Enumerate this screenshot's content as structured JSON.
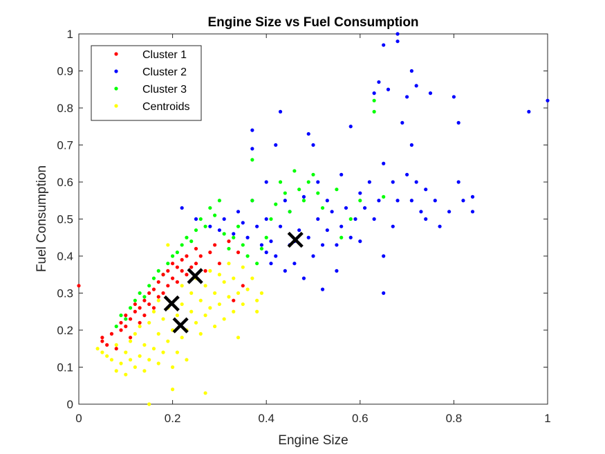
{
  "chart_data": {
    "type": "scatter",
    "title": "Engine Size vs Fuel Consumption",
    "xlabel": "Engine Size",
    "ylabel": "Fuel Consumption",
    "xlim": [
      0,
      1
    ],
    "ylim": [
      0,
      1
    ],
    "x_ticks": [
      "0",
      "0.2",
      "0.4",
      "0.6",
      "0.8",
      "1"
    ],
    "y_ticks": [
      "0",
      "0.1",
      "0.2",
      "0.3",
      "0.4",
      "0.5",
      "0.6",
      "0.7",
      "0.8",
      "0.9",
      "1"
    ],
    "grid": false,
    "legend_position": "top-left",
    "legend": [
      {
        "name": "Cluster 1",
        "color": "#ff0000"
      },
      {
        "name": "Cluster 2",
        "color": "#0000ff"
      },
      {
        "name": "Cluster 3",
        "color": "#00ff00"
      },
      {
        "name": "Centroids",
        "color": "#ffff00"
      }
    ],
    "series": [
      {
        "name": "Cluster 1",
        "color": "#ff0000",
        "points": [
          [
            0.0,
            0.32
          ],
          [
            0.05,
            0.18
          ],
          [
            0.05,
            0.17
          ],
          [
            0.06,
            0.16
          ],
          [
            0.07,
            0.19
          ],
          [
            0.08,
            0.15
          ],
          [
            0.09,
            0.2
          ],
          [
            0.09,
            0.22
          ],
          [
            0.1,
            0.21
          ],
          [
            0.1,
            0.24
          ],
          [
            0.11,
            0.18
          ],
          [
            0.11,
            0.23
          ],
          [
            0.12,
            0.25
          ],
          [
            0.12,
            0.27
          ],
          [
            0.13,
            0.22
          ],
          [
            0.13,
            0.26
          ],
          [
            0.14,
            0.28
          ],
          [
            0.14,
            0.24
          ],
          [
            0.15,
            0.3
          ],
          [
            0.15,
            0.27
          ],
          [
            0.16,
            0.31
          ],
          [
            0.16,
            0.26
          ],
          [
            0.17,
            0.29
          ],
          [
            0.17,
            0.33
          ],
          [
            0.18,
            0.3
          ],
          [
            0.18,
            0.35
          ],
          [
            0.19,
            0.32
          ],
          [
            0.19,
            0.36
          ],
          [
            0.2,
            0.34
          ],
          [
            0.2,
            0.38
          ],
          [
            0.21,
            0.33
          ],
          [
            0.21,
            0.37
          ],
          [
            0.22,
            0.36
          ],
          [
            0.22,
            0.39
          ],
          [
            0.23,
            0.35
          ],
          [
            0.23,
            0.4
          ],
          [
            0.24,
            0.37
          ],
          [
            0.25,
            0.42
          ],
          [
            0.25,
            0.38
          ],
          [
            0.26,
            0.4
          ],
          [
            0.27,
            0.36
          ],
          [
            0.28,
            0.41
          ],
          [
            0.29,
            0.43
          ],
          [
            0.3,
            0.38
          ],
          [
            0.32,
            0.44
          ],
          [
            0.34,
            0.41
          ],
          [
            0.35,
            0.32
          ],
          [
            0.33,
            0.28
          ]
        ]
      },
      {
        "name": "Cluster 2",
        "color": "#0000ff",
        "points": [
          [
            0.22,
            0.53
          ],
          [
            0.25,
            0.5
          ],
          [
            0.28,
            0.48
          ],
          [
            0.3,
            0.47
          ],
          [
            0.31,
            0.5
          ],
          [
            0.33,
            0.46
          ],
          [
            0.34,
            0.52
          ],
          [
            0.35,
            0.49
          ],
          [
            0.36,
            0.45
          ],
          [
            0.37,
            0.74
          ],
          [
            0.37,
            0.69
          ],
          [
            0.37,
            0.55
          ],
          [
            0.38,
            0.48
          ],
          [
            0.39,
            0.43
          ],
          [
            0.4,
            0.6
          ],
          [
            0.4,
            0.5
          ],
          [
            0.4,
            0.41
          ],
          [
            0.41,
            0.44
          ],
          [
            0.41,
            0.38
          ],
          [
            0.42,
            0.4
          ],
          [
            0.42,
            0.7
          ],
          [
            0.43,
            0.79
          ],
          [
            0.43,
            0.48
          ],
          [
            0.44,
            0.55
          ],
          [
            0.44,
            0.36
          ],
          [
            0.45,
            0.43
          ],
          [
            0.45,
            0.52
          ],
          [
            0.46,
            0.44
          ],
          [
            0.46,
            0.38
          ],
          [
            0.47,
            0.47
          ],
          [
            0.48,
            0.56
          ],
          [
            0.48,
            0.34
          ],
          [
            0.49,
            0.45
          ],
          [
            0.49,
            0.73
          ],
          [
            0.5,
            0.7
          ],
          [
            0.5,
            0.4
          ],
          [
            0.51,
            0.5
          ],
          [
            0.51,
            0.6
          ],
          [
            0.52,
            0.43
          ],
          [
            0.52,
            0.31
          ],
          [
            0.53,
            0.55
          ],
          [
            0.53,
            0.47
          ],
          [
            0.54,
            0.52
          ],
          [
            0.55,
            0.43
          ],
          [
            0.55,
            0.36
          ],
          [
            0.56,
            0.62
          ],
          [
            0.56,
            0.48
          ],
          [
            0.57,
            0.53
          ],
          [
            0.58,
            0.45
          ],
          [
            0.58,
            0.75
          ],
          [
            0.59,
            0.5
          ],
          [
            0.6,
            0.57
          ],
          [
            0.6,
            0.44
          ],
          [
            0.61,
            0.53
          ],
          [
            0.62,
            0.6
          ],
          [
            0.63,
            0.84
          ],
          [
            0.63,
            0.5
          ],
          [
            0.64,
            0.87
          ],
          [
            0.64,
            0.55
          ],
          [
            0.65,
            0.97
          ],
          [
            0.65,
            0.65
          ],
          [
            0.65,
            0.4
          ],
          [
            0.65,
            0.3
          ],
          [
            0.66,
            0.85
          ],
          [
            0.67,
            0.6
          ],
          [
            0.67,
            0.48
          ],
          [
            0.68,
            1.0
          ],
          [
            0.68,
            0.98
          ],
          [
            0.68,
            0.55
          ],
          [
            0.69,
            0.76
          ],
          [
            0.7,
            0.83
          ],
          [
            0.7,
            0.62
          ],
          [
            0.71,
            0.9
          ],
          [
            0.71,
            0.7
          ],
          [
            0.71,
            0.55
          ],
          [
            0.72,
            0.86
          ],
          [
            0.72,
            0.6
          ],
          [
            0.73,
            0.52
          ],
          [
            0.74,
            0.58
          ],
          [
            0.74,
            0.5
          ],
          [
            0.75,
            0.84
          ],
          [
            0.76,
            0.55
          ],
          [
            0.77,
            0.48
          ],
          [
            0.79,
            0.52
          ],
          [
            0.8,
            0.83
          ],
          [
            0.81,
            0.76
          ],
          [
            0.81,
            0.6
          ],
          [
            0.82,
            0.55
          ],
          [
            0.84,
            0.56
          ],
          [
            0.84,
            0.52
          ],
          [
            0.96,
            0.79
          ],
          [
            1.0,
            0.82
          ]
        ]
      },
      {
        "name": "Cluster 3",
        "color": "#00ff00",
        "points": [
          [
            0.08,
            0.21
          ],
          [
            0.09,
            0.24
          ],
          [
            0.1,
            0.23
          ],
          [
            0.11,
            0.26
          ],
          [
            0.12,
            0.28
          ],
          [
            0.13,
            0.3
          ],
          [
            0.14,
            0.29
          ],
          [
            0.15,
            0.32
          ],
          [
            0.16,
            0.34
          ],
          [
            0.17,
            0.36
          ],
          [
            0.18,
            0.35
          ],
          [
            0.19,
            0.38
          ],
          [
            0.2,
            0.4
          ],
          [
            0.21,
            0.41
          ],
          [
            0.22,
            0.43
          ],
          [
            0.23,
            0.45
          ],
          [
            0.24,
            0.44
          ],
          [
            0.25,
            0.47
          ],
          [
            0.26,
            0.5
          ],
          [
            0.27,
            0.48
          ],
          [
            0.28,
            0.53
          ],
          [
            0.29,
            0.51
          ],
          [
            0.3,
            0.55
          ],
          [
            0.31,
            0.46
          ],
          [
            0.32,
            0.42
          ],
          [
            0.33,
            0.45
          ],
          [
            0.34,
            0.48
          ],
          [
            0.35,
            0.43
          ],
          [
            0.36,
            0.4
          ],
          [
            0.37,
            0.66
          ],
          [
            0.37,
            0.55
          ],
          [
            0.38,
            0.38
          ],
          [
            0.39,
            0.42
          ],
          [
            0.4,
            0.45
          ],
          [
            0.41,
            0.5
          ],
          [
            0.42,
            0.54
          ],
          [
            0.43,
            0.6
          ],
          [
            0.44,
            0.57
          ],
          [
            0.45,
            0.52
          ],
          [
            0.46,
            0.63
          ],
          [
            0.47,
            0.58
          ],
          [
            0.48,
            0.55
          ],
          [
            0.49,
            0.6
          ],
          [
            0.5,
            0.62
          ],
          [
            0.51,
            0.57
          ],
          [
            0.52,
            0.53
          ],
          [
            0.55,
            0.58
          ],
          [
            0.56,
            0.45
          ],
          [
            0.58,
            0.5
          ],
          [
            0.6,
            0.55
          ],
          [
            0.63,
            0.82
          ],
          [
            0.63,
            0.79
          ],
          [
            0.65,
            0.56
          ]
        ]
      },
      {
        "name": "Centroids",
        "color": "#ffff00",
        "points": [
          [
            0.04,
            0.15
          ],
          [
            0.05,
            0.14
          ],
          [
            0.06,
            0.13
          ],
          [
            0.07,
            0.12
          ],
          [
            0.08,
            0.09
          ],
          [
            0.08,
            0.16
          ],
          [
            0.09,
            0.11
          ],
          [
            0.1,
            0.14
          ],
          [
            0.1,
            0.08
          ],
          [
            0.11,
            0.12
          ],
          [
            0.11,
            0.17
          ],
          [
            0.12,
            0.1
          ],
          [
            0.12,
            0.19
          ],
          [
            0.13,
            0.13
          ],
          [
            0.13,
            0.21
          ],
          [
            0.14,
            0.09
          ],
          [
            0.14,
            0.16
          ],
          [
            0.15,
            0.0
          ],
          [
            0.15,
            0.12
          ],
          [
            0.15,
            0.22
          ],
          [
            0.16,
            0.15
          ],
          [
            0.16,
            0.25
          ],
          [
            0.17,
            0.11
          ],
          [
            0.17,
            0.19
          ],
          [
            0.17,
            0.28
          ],
          [
            0.18,
            0.14
          ],
          [
            0.18,
            0.23
          ],
          [
            0.19,
            0.17
          ],
          [
            0.19,
            0.26
          ],
          [
            0.19,
            0.43
          ],
          [
            0.2,
            0.2
          ],
          [
            0.2,
            0.1
          ],
          [
            0.2,
            0.04
          ],
          [
            0.21,
            0.24
          ],
          [
            0.21,
            0.14
          ],
          [
            0.22,
            0.18
          ],
          [
            0.22,
            0.27
          ],
          [
            0.22,
            0.32
          ],
          [
            0.23,
            0.2
          ],
          [
            0.23,
            0.12
          ],
          [
            0.24,
            0.25
          ],
          [
            0.24,
            0.3
          ],
          [
            0.25,
            0.22
          ],
          [
            0.25,
            0.34
          ],
          [
            0.26,
            0.19
          ],
          [
            0.26,
            0.28
          ],
          [
            0.27,
            0.03
          ],
          [
            0.27,
            0.24
          ],
          [
            0.27,
            0.32
          ],
          [
            0.28,
            0.26
          ],
          [
            0.28,
            0.36
          ],
          [
            0.29,
            0.21
          ],
          [
            0.29,
            0.3
          ],
          [
            0.3,
            0.27
          ],
          [
            0.3,
            0.35
          ],
          [
            0.31,
            0.23
          ],
          [
            0.31,
            0.33
          ],
          [
            0.32,
            0.29
          ],
          [
            0.32,
            0.38
          ],
          [
            0.33,
            0.25
          ],
          [
            0.33,
            0.34
          ],
          [
            0.34,
            0.18
          ],
          [
            0.34,
            0.3
          ],
          [
            0.35,
            0.27
          ],
          [
            0.35,
            0.37
          ],
          [
            0.36,
            0.31
          ],
          [
            0.37,
            0.34
          ],
          [
            0.38,
            0.28
          ],
          [
            0.39,
            0.3
          ],
          [
            0.38,
            0.25
          ]
        ]
      }
    ],
    "centroid_markers": [
      [
        0.198,
        0.272
      ],
      [
        0.217,
        0.213
      ],
      [
        0.248,
        0.346
      ],
      [
        0.462,
        0.444
      ]
    ]
  }
}
